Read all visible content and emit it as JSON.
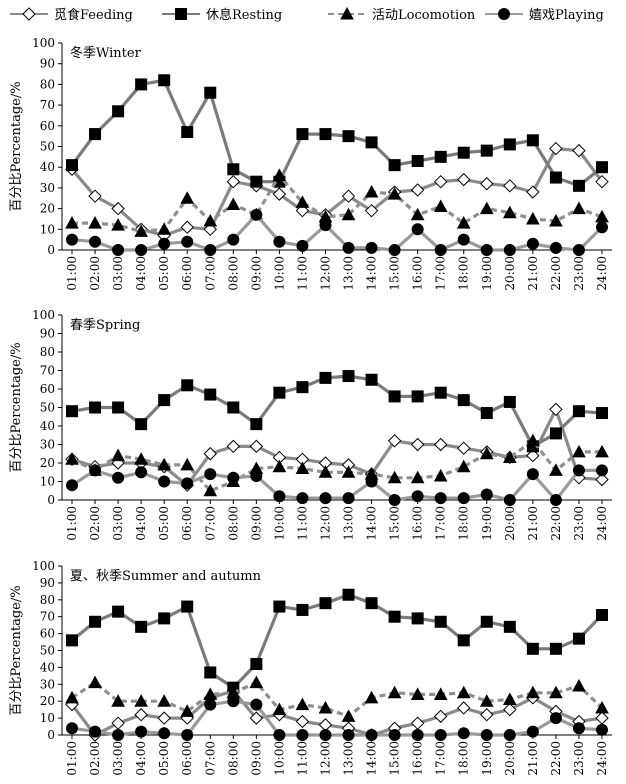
{
  "legend": {
    "items": [
      {
        "key": "feeding",
        "label": "觅食Feeding",
        "marker": "diamond-open",
        "dash": "solid"
      },
      {
        "key": "resting",
        "label": "休息Resting",
        "marker": "square-filled",
        "dash": "solid"
      },
      {
        "key": "locomotion",
        "label": "活动Locomotion",
        "marker": "triangle-filled",
        "dash": "dashed"
      },
      {
        "key": "playing",
        "label": "嬉戏Playing",
        "marker": "circle-filled",
        "dash": "solid"
      }
    ]
  },
  "colors": {
    "feeding": "#8a8a8a",
    "resting": "#7a7a7a",
    "locomotion": "#8f8f8f",
    "playing": "#9a9a9a",
    "axis": "#000000"
  },
  "chart_data": [
    {
      "type": "line",
      "title": "冬季Winter",
      "ylabel": "百分比Percentage/%",
      "xlabel": "",
      "ylim": [
        0,
        100
      ],
      "yticks": [
        0,
        10,
        20,
        30,
        40,
        50,
        60,
        70,
        80,
        90,
        100
      ],
      "categories": [
        "01:00",
        "02:00",
        "03:00",
        "04:00",
        "05:00",
        "06:00",
        "07:00",
        "08:00",
        "09:00",
        "10:00",
        "11:00",
        "12:00",
        "13:00",
        "14:00",
        "15:00",
        "16:00",
        "17:00",
        "18:00",
        "19:00",
        "20:00",
        "21:00",
        "22:00",
        "23:00",
        "24:00"
      ],
      "series": [
        {
          "key": "feeding",
          "name": "觅食Feeding",
          "values": [
            39,
            26,
            20,
            10,
            7,
            11,
            10,
            33,
            31,
            27,
            19,
            17,
            26,
            19,
            28,
            29,
            33,
            34,
            32,
            31,
            28,
            49,
            48,
            33
          ]
        },
        {
          "key": "resting",
          "name": "休息Resting",
          "values": [
            41,
            56,
            67,
            80,
            82,
            57,
            76,
            39,
            33,
            33,
            56,
            56,
            55,
            52,
            41,
            43,
            45,
            47,
            48,
            51,
            53,
            35,
            31,
            40
          ]
        },
        {
          "key": "locomotion",
          "name": "活动Locomotion",
          "values": [
            13,
            13,
            12,
            9,
            10,
            25,
            14,
            22,
            17,
            36,
            23,
            16,
            17,
            28,
            27,
            17,
            21,
            13,
            20,
            18,
            15,
            14,
            20,
            16
          ]
        },
        {
          "key": "playing",
          "name": "嬉戏Playing",
          "values": [
            5,
            4,
            0,
            0,
            3,
            4,
            0,
            5,
            17,
            4,
            2,
            12,
            1,
            1,
            0,
            10,
            0,
            5,
            0,
            0,
            3,
            1,
            0,
            11
          ]
        }
      ]
    },
    {
      "type": "line",
      "title": "春季Spring",
      "ylabel": "百分比Percentage/%",
      "xlabel": "",
      "ylim": [
        0,
        100
      ],
      "yticks": [
        0,
        10,
        20,
        30,
        40,
        50,
        60,
        70,
        80,
        90,
        100
      ],
      "categories": [
        "01:00",
        "02:00",
        "03:00",
        "04:00",
        "05:00",
        "06:00",
        "07:00",
        "08:00",
        "09:00",
        "10:00",
        "11:00",
        "12:00",
        "13:00",
        "14:00",
        "15:00",
        "16:00",
        "17:00",
        "18:00",
        "19:00",
        "20:00",
        "21:00",
        "22:00",
        "23:00",
        "24:00"
      ],
      "series": [
        {
          "key": "feeding",
          "name": "觅食Feeding",
          "values": [
            22,
            18,
            20,
            20,
            18,
            8,
            25,
            29,
            29,
            23,
            22,
            20,
            19,
            14,
            32,
            30,
            30,
            28,
            26,
            23,
            24,
            49,
            12,
            11
          ]
        },
        {
          "key": "resting",
          "name": "休息Resting",
          "values": [
            48,
            50,
            50,
            41,
            54,
            62,
            57,
            50,
            41,
            58,
            61,
            66,
            67,
            65,
            56,
            56,
            58,
            54,
            47,
            53,
            29,
            36,
            48,
            47
          ]
        },
        {
          "key": "locomotion",
          "name": "活动Locomotion",
          "values": [
            22,
            16,
            24,
            22,
            19,
            19,
            5,
            10,
            17,
            18,
            17,
            15,
            15,
            14,
            12,
            12,
            13,
            18,
            25,
            23,
            32,
            16,
            26,
            26
          ]
        },
        {
          "key": "playing",
          "name": "嬉戏Playing",
          "values": [
            8,
            16,
            12,
            15,
            10,
            9,
            14,
            12,
            13,
            2,
            1,
            1,
            1,
            10,
            0,
            2,
            1,
            1,
            3,
            0,
            14,
            0,
            16,
            16
          ]
        }
      ]
    },
    {
      "type": "line",
      "title": "夏、秋季Summer and autumn",
      "ylabel": "百分比Percentage/%",
      "xlabel": "",
      "ylim": [
        0,
        100
      ],
      "yticks": [
        0,
        10,
        20,
        30,
        40,
        50,
        60,
        70,
        80,
        90,
        100
      ],
      "categories": [
        "01:00",
        "02:00",
        "03:00",
        "04:00",
        "05:00",
        "06:00",
        "07:00",
        "08:00",
        "09:00",
        "10:00",
        "11:00",
        "12:00",
        "13:00",
        "14:00",
        "15:00",
        "16:00",
        "17:00",
        "18:00",
        "19:00",
        "20:00",
        "21:00",
        "22:00",
        "23:00",
        "24:00"
      ],
      "series": [
        {
          "key": "feeding",
          "name": "觅食Feeding",
          "values": [
            18,
            0,
            7,
            12,
            10,
            10,
            22,
            26,
            10,
            12,
            8,
            6,
            4,
            0,
            4,
            7,
            11,
            16,
            12,
            15,
            22,
            14,
            8,
            10
          ]
        },
        {
          "key": "resting",
          "name": "休息Resting",
          "values": [
            56,
            67,
            73,
            64,
            69,
            76,
            37,
            28,
            42,
            76,
            74,
            78,
            83,
            78,
            70,
            69,
            67,
            56,
            67,
            64,
            51,
            51,
            57,
            71
          ]
        },
        {
          "key": "locomotion",
          "name": "活动Locomotion",
          "values": [
            22,
            31,
            20,
            20,
            20,
            14,
            24,
            25,
            31,
            15,
            18,
            16,
            11,
            22,
            25,
            24,
            24,
            25,
            20,
            21,
            25,
            25,
            29,
            16
          ]
        },
        {
          "key": "playing",
          "name": "嬉戏Playing",
          "values": [
            4,
            2,
            0,
            2,
            1,
            0,
            18,
            20,
            18,
            0,
            0,
            0,
            0,
            0,
            0,
            0,
            0,
            1,
            0,
            0,
            2,
            10,
            4,
            3
          ]
        }
      ]
    }
  ]
}
